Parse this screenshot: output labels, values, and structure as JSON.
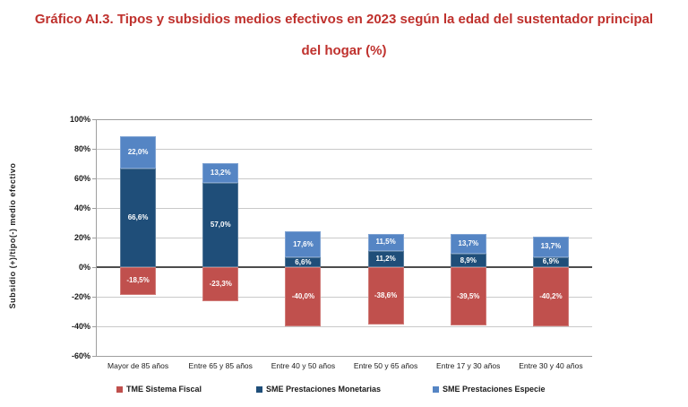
{
  "title": {
    "line1": "Gráfico AI.3. Tipos y subsidios medios efectivos en 2023 según la edad del sustentador principal",
    "line2": "del hogar (%)"
  },
  "chart_data": {
    "type": "bar",
    "stacked": true,
    "title": "Gráfico AI.3. Tipos y subsidios medios efectivos en 2023 según la edad del sustentador principal del hogar (%)",
    "categories": [
      "Mayor de 85 años",
      "Entre 65 y 85 años",
      "Entre 40 y 50 años",
      "Entre 50 y 65 años",
      "Entre 17 y 30 años",
      "Entre 30 y 40 años"
    ],
    "series": [
      {
        "name": "TME Sistema Fiscal",
        "color": "#C0504D",
        "values": [
          -18.5,
          -23.3,
          -40.0,
          -38.6,
          -39.5,
          -40.2
        ],
        "labels": [
          "-18,5%",
          "-23,3%",
          "-40,0%",
          "-38,6%",
          "-39,5%",
          "-40,2%"
        ]
      },
      {
        "name": "SME Prestaciones Monetarias",
        "color": "#1F4E79",
        "values": [
          66.6,
          57.0,
          6.6,
          11.2,
          8.9,
          6.9
        ],
        "labels": [
          "66,6%",
          "57,0%",
          "6,6%",
          "11,2%",
          "8,9%",
          "6,9%"
        ]
      },
      {
        "name": "SME Prestaciones Especie",
        "color": "#5585C4",
        "values": [
          22.0,
          13.2,
          17.6,
          11.5,
          13.7,
          13.7
        ],
        "labels": [
          "22,0%",
          "13,2%",
          "17,6%",
          "11,5%",
          "13,7%",
          "13,7%"
        ]
      }
    ],
    "xlabel": "",
    "ylabel": "Subsidio (+)/tipo(-) medio efectivo",
    "ylim": [
      -60,
      100
    ],
    "ytick_step": 20,
    "yticks": [
      "100%",
      "80%",
      "60%",
      "40%",
      "20%",
      "0%",
      "-20%",
      "-40%",
      "-60%"
    ],
    "grid": true,
    "legend_position": "bottom",
    "colors": {
      "title_text": "#BF312D",
      "gridline": "#C9C9C9",
      "zero_line": "#4D4D4D",
      "axis_line": "#9E9E9E",
      "bar_label_text": "#FFFFFF"
    }
  }
}
